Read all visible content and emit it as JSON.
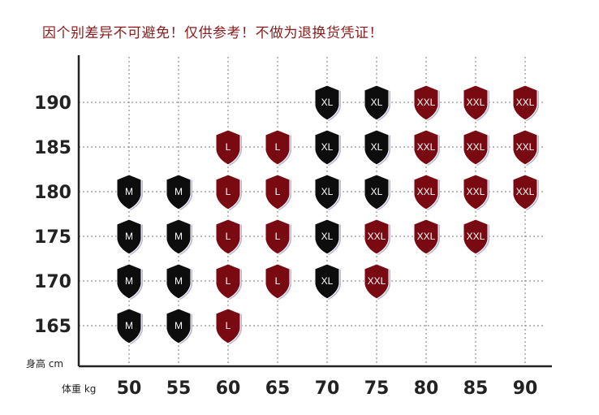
{
  "notice": "因个别差异不可避免！仅供参考！不做为退换货凭证！",
  "chart_data": {
    "type": "table",
    "xlabel": "体重 kg",
    "ylabel": "身高 cm",
    "x": [
      50,
      55,
      60,
      65,
      70,
      75,
      80,
      85,
      90
    ],
    "y": [
      165,
      170,
      175,
      180,
      185,
      190
    ],
    "grid": true,
    "cells": [
      {
        "x": 50,
        "y": 165,
        "size": "M"
      },
      {
        "x": 55,
        "y": 165,
        "size": "M"
      },
      {
        "x": 60,
        "y": 165,
        "size": "L"
      },
      {
        "x": 50,
        "y": 170,
        "size": "M"
      },
      {
        "x": 55,
        "y": 170,
        "size": "M"
      },
      {
        "x": 60,
        "y": 170,
        "size": "L"
      },
      {
        "x": 65,
        "y": 170,
        "size": "L"
      },
      {
        "x": 70,
        "y": 170,
        "size": "XL"
      },
      {
        "x": 75,
        "y": 170,
        "size": "XXL"
      },
      {
        "x": 50,
        "y": 175,
        "size": "M"
      },
      {
        "x": 55,
        "y": 175,
        "size": "M"
      },
      {
        "x": 60,
        "y": 175,
        "size": "L"
      },
      {
        "x": 65,
        "y": 175,
        "size": "L"
      },
      {
        "x": 70,
        "y": 175,
        "size": "XL"
      },
      {
        "x": 75,
        "y": 175,
        "size": "XXL"
      },
      {
        "x": 80,
        "y": 175,
        "size": "XXL"
      },
      {
        "x": 85,
        "y": 175,
        "size": "XXL"
      },
      {
        "x": 50,
        "y": 180,
        "size": "M"
      },
      {
        "x": 55,
        "y": 180,
        "size": "M"
      },
      {
        "x": 60,
        "y": 180,
        "size": "L"
      },
      {
        "x": 65,
        "y": 180,
        "size": "L"
      },
      {
        "x": 70,
        "y": 180,
        "size": "XL"
      },
      {
        "x": 75,
        "y": 180,
        "size": "XL"
      },
      {
        "x": 80,
        "y": 180,
        "size": "XXL"
      },
      {
        "x": 85,
        "y": 180,
        "size": "XXL"
      },
      {
        "x": 90,
        "y": 180,
        "size": "XXL"
      },
      {
        "x": 60,
        "y": 185,
        "size": "L"
      },
      {
        "x": 65,
        "y": 185,
        "size": "L"
      },
      {
        "x": 70,
        "y": 185,
        "size": "XL"
      },
      {
        "x": 75,
        "y": 185,
        "size": "XL"
      },
      {
        "x": 80,
        "y": 185,
        "size": "XXL"
      },
      {
        "x": 85,
        "y": 185,
        "size": "XXL"
      },
      {
        "x": 90,
        "y": 185,
        "size": "XXL"
      },
      {
        "x": 70,
        "y": 190,
        "size": "XL"
      },
      {
        "x": 75,
        "y": 190,
        "size": "XL"
      },
      {
        "x": 80,
        "y": 190,
        "size": "XXL"
      },
      {
        "x": 85,
        "y": 190,
        "size": "XXL"
      },
      {
        "x": 90,
        "y": 190,
        "size": "XXL"
      }
    ],
    "colors": {
      "M": "#0d0d0d",
      "L": "#7a0a12",
      "XL": "#0d0d0d",
      "XXL": "#7a0a12",
      "rim": "#b9b6d6"
    }
  }
}
